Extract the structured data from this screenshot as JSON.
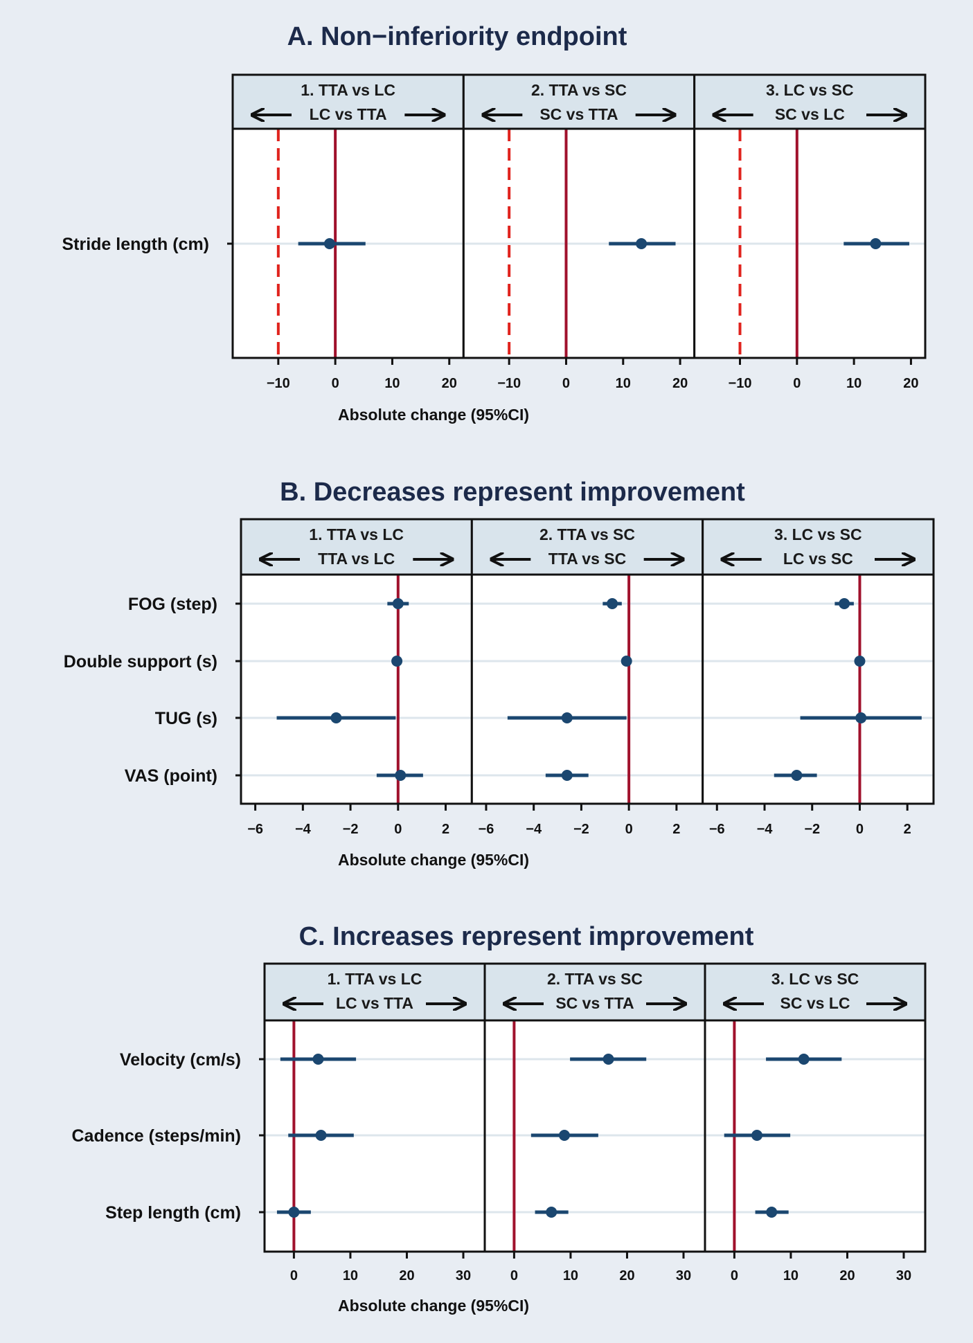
{
  "colors": {
    "background": "#e8edf3",
    "header_fill": "#d9e4ec",
    "reference_line": "#a0112c",
    "margin_line": "#e0231d",
    "point": "#1b4770",
    "gridline": "#dde6ec"
  },
  "chart_data": [
    {
      "type": "forest",
      "title": "A. Non−inferiority endpoint",
      "xlabel": "Absolute change (95%CI)",
      "ticks": [
        -10,
        0,
        10,
        20
      ],
      "tick_labels": [
        "−10",
        "0",
        "10",
        "20"
      ],
      "reference_line": 0,
      "noninferiority_margin": -10,
      "panels": [
        {
          "header": "1. TTA vs LC",
          "left_label": "LC vs TTA",
          "right_label": "",
          "xlim": [
            -18,
            22.5
          ]
        },
        {
          "header": "2. TTA vs SC",
          "left_label": "SC vs TTA",
          "right_label": "",
          "xlim": [
            -18,
            22.5
          ]
        },
        {
          "header": "3. LC vs SC",
          "left_label": "SC vs LC",
          "right_label": "",
          "xlim": [
            -18,
            22.5
          ]
        }
      ],
      "rows": [
        {
          "label": "Stride length (cm)",
          "estimates": [
            {
              "est": -1,
              "lo": -6.5,
              "hi": 5.3
            },
            {
              "est": 13.2,
              "lo": 7.5,
              "hi": 19.2
            },
            {
              "est": 13.8,
              "lo": 8.2,
              "hi": 19.7
            }
          ]
        }
      ]
    },
    {
      "type": "forest",
      "title": "B. Decreases represent improvement",
      "xlabel": "Absolute change (95%CI)",
      "ticks": [
        -6,
        -4,
        -2,
        0,
        2
      ],
      "tick_labels": [
        "−6",
        "−4",
        "−2",
        "0",
        "2"
      ],
      "reference_line": 0,
      "panels": [
        {
          "header": "1. TTA vs LC",
          "left_label": "TTA vs LC",
          "right_label": "",
          "xlim": [
            -6.6,
            3.1
          ]
        },
        {
          "header": "2. TTA vs SC",
          "left_label": "TTA vs SC",
          "right_label": "",
          "xlim": [
            -6.6,
            3.1
          ]
        },
        {
          "header": "3. LC vs SC",
          "left_label": "LC vs SC",
          "right_label": "",
          "xlim": [
            -6.6,
            3.1
          ]
        }
      ],
      "rows": [
        {
          "label": "FOG (step)",
          "estimates": [
            {
              "est": 0,
              "lo": -0.45,
              "hi": 0.45
            },
            {
              "est": -0.7,
              "lo": -1.1,
              "hi": -0.3
            },
            {
              "est": -0.65,
              "lo": -1.05,
              "hi": -0.25
            }
          ]
        },
        {
          "label": "Double support (s)",
          "estimates": [
            {
              "est": -0.05,
              "lo": -0.1,
              "hi": 0.0
            },
            {
              "est": -0.1,
              "lo": -0.15,
              "hi": -0.05
            },
            {
              "est": 0,
              "lo": -0.05,
              "hi": 0.05
            }
          ]
        },
        {
          "label": "TUG (s)",
          "estimates": [
            {
              "est": -2.6,
              "lo": -5.1,
              "hi": -0.1
            },
            {
              "est": -2.6,
              "lo": -5.1,
              "hi": -0.1
            },
            {
              "est": 0.05,
              "lo": -2.5,
              "hi": 2.6
            }
          ]
        },
        {
          "label": "VAS (point)",
          "estimates": [
            {
              "est": 0.1,
              "lo": -0.9,
              "hi": 1.05
            },
            {
              "est": -2.6,
              "lo": -3.5,
              "hi": -1.7
            },
            {
              "est": -2.65,
              "lo": -3.6,
              "hi": -1.8
            }
          ]
        }
      ]
    },
    {
      "type": "forest",
      "title": "C. Increases represent improvement",
      "xlabel": "Absolute change (95%CI)",
      "ticks": [
        0,
        10,
        20,
        30
      ],
      "tick_labels": [
        "0",
        "10",
        "20",
        "30"
      ],
      "reference_line": 0,
      "panels": [
        {
          "header": "1. TTA vs LC",
          "left_label": "LC vs TTA",
          "right_label": "",
          "xlim": [
            -5.2,
            33.8
          ]
        },
        {
          "header": "2. TTA vs SC",
          "left_label": "SC vs TTA",
          "right_label": "",
          "xlim": [
            -5.2,
            33.8
          ]
        },
        {
          "header": "3. LC vs SC",
          "left_label": "SC vs LC",
          "right_label": "",
          "xlim": [
            -5.2,
            33.8
          ]
        }
      ],
      "rows": [
        {
          "label": "Velocity (cm/s)",
          "estimates": [
            {
              "est": 4.3,
              "lo": -2.4,
              "hi": 11.0
            },
            {
              "est": 16.7,
              "lo": 9.9,
              "hi": 23.4
            },
            {
              "est": 12.3,
              "lo": 5.6,
              "hi": 19.0
            }
          ]
        },
        {
          "label": "Cadence (steps/min)",
          "estimates": [
            {
              "est": 4.8,
              "lo": -1.0,
              "hi": 10.6
            },
            {
              "est": 8.9,
              "lo": 3.0,
              "hi": 14.9
            },
            {
              "est": 4.0,
              "lo": -1.8,
              "hi": 9.9
            }
          ]
        },
        {
          "label": "Step length (cm)",
          "estimates": [
            {
              "est": 0,
              "lo": -3.0,
              "hi": 3.0
            },
            {
              "est": 6.6,
              "lo": 3.7,
              "hi": 9.6
            },
            {
              "est": 6.6,
              "lo": 3.7,
              "hi": 9.6
            }
          ]
        }
      ]
    }
  ]
}
